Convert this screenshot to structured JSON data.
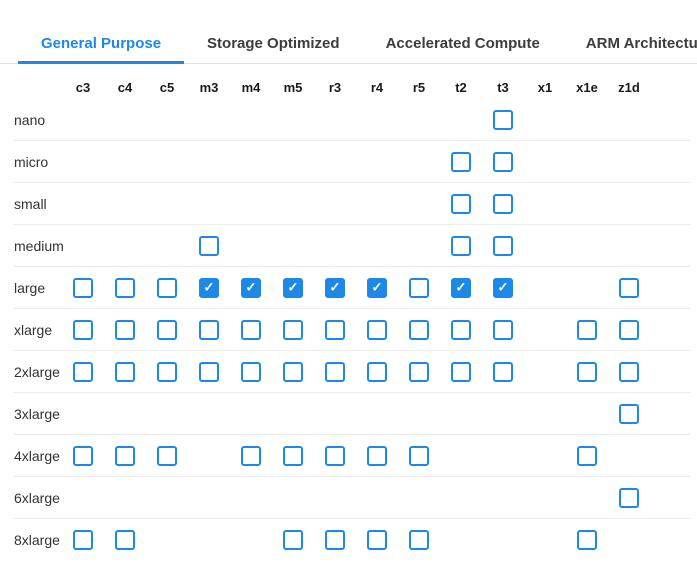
{
  "tabs": {
    "items": [
      {
        "label": "General Purpose",
        "active": true
      },
      {
        "label": "Storage Optimized",
        "active": false
      },
      {
        "label": "Accelerated Compute",
        "active": false
      },
      {
        "label": "ARM Architecture",
        "active": false
      }
    ]
  },
  "icons": {
    "checkmark": "✓"
  },
  "colors": {
    "accent": "#1E88E5",
    "tab_inactive": "#3d3d3d",
    "header_text": "#1a1a1a",
    "row_label": "#333333",
    "divider": "#ececec",
    "checkmark": "#ffffff"
  },
  "grid": {
    "columns": [
      "c3",
      "c4",
      "c5",
      "m3",
      "m4",
      "m5",
      "r3",
      "r4",
      "r5",
      "t2",
      "t3",
      "x1",
      "x1e",
      "z1d"
    ],
    "cell_states": {
      "0": "no-checkbox",
      "1": "unchecked",
      "2": "checked"
    },
    "rows": [
      {
        "label": "nano",
        "cells": [
          0,
          0,
          0,
          0,
          0,
          0,
          0,
          0,
          0,
          0,
          1,
          0,
          0,
          0
        ]
      },
      {
        "label": "micro",
        "cells": [
          0,
          0,
          0,
          0,
          0,
          0,
          0,
          0,
          0,
          1,
          1,
          0,
          0,
          0
        ]
      },
      {
        "label": "small",
        "cells": [
          0,
          0,
          0,
          0,
          0,
          0,
          0,
          0,
          0,
          1,
          1,
          0,
          0,
          0
        ]
      },
      {
        "label": "medium",
        "cells": [
          0,
          0,
          0,
          1,
          0,
          0,
          0,
          0,
          0,
          1,
          1,
          0,
          0,
          0
        ]
      },
      {
        "label": "large",
        "cells": [
          1,
          1,
          1,
          2,
          2,
          2,
          2,
          2,
          1,
          2,
          2,
          0,
          0,
          1
        ]
      },
      {
        "label": "xlarge",
        "cells": [
          1,
          1,
          1,
          1,
          1,
          1,
          1,
          1,
          1,
          1,
          1,
          0,
          1,
          1
        ]
      },
      {
        "label": "2xlarge",
        "cells": [
          1,
          1,
          1,
          1,
          1,
          1,
          1,
          1,
          1,
          1,
          1,
          0,
          1,
          1
        ]
      },
      {
        "label": "3xlarge",
        "cells": [
          0,
          0,
          0,
          0,
          0,
          0,
          0,
          0,
          0,
          0,
          0,
          0,
          0,
          1
        ]
      },
      {
        "label": "4xlarge",
        "cells": [
          1,
          1,
          1,
          0,
          1,
          1,
          1,
          1,
          1,
          0,
          0,
          0,
          1,
          0
        ]
      },
      {
        "label": "6xlarge",
        "cells": [
          0,
          0,
          0,
          0,
          0,
          0,
          0,
          0,
          0,
          0,
          0,
          0,
          0,
          1
        ]
      },
      {
        "label": "8xlarge",
        "cells": [
          1,
          1,
          0,
          0,
          0,
          1,
          1,
          1,
          1,
          0,
          0,
          0,
          1,
          0
        ]
      }
    ]
  }
}
